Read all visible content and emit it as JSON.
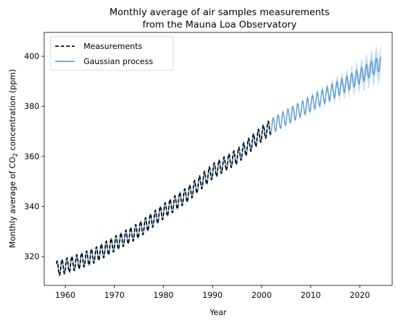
{
  "chart_data": {
    "type": "line",
    "title": [
      "Monthly average of air samples measurements",
      "from the Mauna Loa Observatory"
    ],
    "xlabel": "Year",
    "ylabel": {
      "prefix": "Monthly average of CO",
      "subscript": "2",
      "suffix": " concentration (ppm)"
    },
    "xlim": [
      1955.7,
      2026.6
    ],
    "ylim": [
      308.5,
      409.5
    ],
    "xticks": [
      1960,
      1970,
      1980,
      1990,
      2000,
      2010,
      2020
    ],
    "yticks": [
      320,
      340,
      360,
      380,
      400
    ],
    "grid": false,
    "legend": {
      "position": "top-left"
    },
    "measurements": {
      "name": "Measurements",
      "color": "#000000",
      "style": "dashed",
      "x_range": [
        1958.2,
        2001.9
      ],
      "seasonal_amplitude_ppm": 3.0,
      "trend": {
        "x": [
          1958,
          1962,
          1966,
          1970,
          1975,
          1980,
          1985,
          1990,
          1995,
          2000,
          2002
        ],
        "y": [
          315,
          317.5,
          320.5,
          325,
          330.5,
          338,
          345,
          354,
          360,
          369,
          372
        ]
      }
    },
    "gaussian_process": {
      "name": "Gaussian process",
      "color": "#5b9bd5",
      "band_color": "#7fb2e0",
      "x_range": [
        1958.2,
        2024.3
      ],
      "seasonal_amplitude_ppm": 3.0,
      "band_halfwidth_start_ppm": 0.2,
      "band_halfwidth_end_ppm": 5.5,
      "trend": {
        "x": [
          1958,
          1962,
          1966,
          1970,
          1975,
          1980,
          1985,
          1990,
          1995,
          2000,
          2002,
          2005,
          2010,
          2015,
          2020,
          2024
        ],
        "y": [
          315,
          317.5,
          320.5,
          325,
          330.5,
          338,
          345,
          354,
          360,
          369,
          372,
          375.5,
          381,
          386.5,
          392,
          397
        ]
      }
    }
  }
}
